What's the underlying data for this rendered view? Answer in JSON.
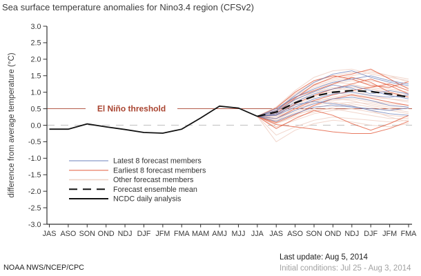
{
  "title": "Sea surface temperature anomalies for Nino3.4 region (CFSv2)",
  "footer": {
    "source": "NOAA NWS/NCEP/CPC",
    "last_update": "Last update: Aug 5, 2014",
    "initial_conditions": "Initial conditions: Jul 25 - Aug 3, 2014"
  },
  "colors": {
    "latest": "#6e82bb",
    "earliest": "#e2593a",
    "other": "#efd2c6",
    "mean": "#111111",
    "observed": "#111111",
    "threshold": "#a94430",
    "zero_line": "#c9c9c9",
    "axis": "#2f2f2f"
  },
  "chart_data": {
    "type": "line",
    "title": "Sea surface temperature anomalies for Nino3.4 region (CFSv2)",
    "xlabel": "",
    "ylabel": "difference from average temperature (°C)",
    "ylim": [
      -3.0,
      3.0
    ],
    "grid": false,
    "legend_position": "lower-left",
    "categories": [
      "JAS",
      "ASO",
      "SON",
      "OND",
      "NDJ",
      "DJF",
      "JFM",
      "FMA",
      "MAM",
      "AMJ",
      "MJJ",
      "JJA",
      "JAS",
      "ASO",
      "SON",
      "OND",
      "NDJ",
      "DJF",
      "JFM",
      "FMA"
    ],
    "ytick_values": [
      3.0,
      2.5,
      2.0,
      1.5,
      1.0,
      0.5,
      0.0,
      -0.5,
      -1.0,
      -1.5,
      -2.0,
      -2.5,
      -3.0
    ],
    "ytick_labels": [
      "3.0",
      "2.5",
      "2.0",
      "1.5",
      "1.0",
      "0.5",
      "0.0",
      "-0.5",
      "-1.0",
      "-1.5",
      "-2.0",
      "-2.5",
      "-3.0"
    ],
    "threshold": {
      "label": "El Niño threshold",
      "value": 0.5
    },
    "zero_line_value": 0.0,
    "series": [
      {
        "name": "NCDC daily analysis",
        "role": "observed",
        "start_index": 0,
        "values": [
          -0.12,
          -0.12,
          0.04,
          -0.05,
          -0.13,
          -0.22,
          -0.24,
          -0.12,
          0.22,
          0.58,
          0.52,
          0.27
        ]
      },
      {
        "name": "Forecast ensemble mean",
        "role": "mean",
        "start_index": 11,
        "values": [
          0.27,
          0.4,
          0.68,
          0.88,
          1.0,
          1.05,
          1.02,
          0.95,
          0.85
        ]
      }
    ],
    "members": {
      "latest": {
        "label": "Latest 8 forecast members",
        "start_index": 11,
        "lines": [
          [
            0.27,
            0.45,
            0.9,
            1.3,
            1.55,
            1.65,
            1.45,
            1.3,
            1.2
          ],
          [
            0.27,
            0.5,
            0.85,
            1.1,
            1.3,
            1.4,
            1.5,
            1.35,
            1.25
          ],
          [
            0.27,
            0.35,
            0.7,
            0.95,
            1.1,
            1.2,
            1.05,
            0.9,
            0.8
          ],
          [
            0.27,
            0.3,
            0.55,
            0.8,
            0.95,
            1.0,
            0.9,
            0.85,
            0.92
          ],
          [
            0.27,
            0.2,
            0.45,
            0.65,
            0.8,
            0.85,
            0.75,
            0.6,
            0.55
          ],
          [
            0.27,
            0.12,
            0.35,
            0.55,
            0.6,
            0.55,
            0.5,
            0.45,
            0.52
          ],
          [
            0.27,
            0.32,
            0.62,
            0.72,
            0.65,
            0.58,
            0.45,
            0.35,
            0.3
          ],
          [
            0.27,
            0.42,
            0.78,
            1.02,
            1.22,
            1.12,
            0.95,
            1.05,
            0.95
          ]
        ]
      },
      "earliest": {
        "label": "Earliest 8 forecast members",
        "start_index": 11,
        "lines": [
          [
            0.27,
            0.02,
            -0.05,
            -0.12,
            -0.2,
            -0.25,
            -0.25,
            -0.1,
            0.12
          ],
          [
            0.27,
            0.08,
            0.32,
            0.6,
            0.8,
            0.92,
            0.82,
            0.7,
            0.6
          ],
          [
            0.27,
            0.35,
            0.82,
            1.22,
            1.45,
            1.55,
            1.7,
            1.4,
            1.1
          ],
          [
            0.27,
            0.52,
            1.0,
            1.35,
            1.5,
            1.4,
            1.2,
            1.15,
            1.32
          ],
          [
            0.27,
            0.45,
            0.85,
            1.05,
            1.25,
            1.45,
            1.3,
            1.0,
            0.85
          ],
          [
            0.27,
            0.2,
            0.5,
            0.75,
            0.92,
            1.05,
            1.15,
            1.25,
            1.05
          ],
          [
            0.27,
            -0.1,
            0.2,
            0.45,
            0.3,
            0.05,
            -0.15,
            0.05,
            0.3
          ],
          [
            0.27,
            0.3,
            0.65,
            0.9,
            1.1,
            1.25,
            1.4,
            1.2,
            0.95
          ]
        ]
      },
      "other": {
        "label": "Other forecast members",
        "start_index": 11,
        "lines": [
          [
            0.27,
            0.55,
            1.05,
            1.45,
            1.65,
            1.7,
            1.55,
            1.45,
            1.35
          ],
          [
            0.27,
            0.45,
            0.95,
            1.25,
            1.4,
            1.5,
            1.6,
            1.5,
            1.4
          ],
          [
            0.27,
            0.35,
            0.75,
            1.05,
            1.25,
            1.35,
            1.25,
            1.1,
            1.0
          ],
          [
            0.27,
            0.25,
            0.6,
            0.85,
            1.05,
            1.15,
            1.1,
            1.0,
            0.9
          ],
          [
            0.27,
            0.15,
            0.45,
            0.7,
            0.85,
            0.95,
            0.85,
            0.8,
            0.75
          ],
          [
            0.27,
            0.05,
            0.3,
            0.5,
            0.65,
            0.7,
            0.65,
            0.55,
            0.5
          ],
          [
            0.27,
            -0.05,
            0.15,
            0.35,
            0.45,
            0.5,
            0.4,
            0.3,
            0.25
          ],
          [
            0.27,
            -0.3,
            -0.05,
            0.15,
            0.25,
            0.2,
            0.15,
            0.1,
            0.15
          ],
          [
            0.27,
            -0.5,
            -0.15,
            0.05,
            0.15,
            0.1,
            0.0,
            -0.05,
            0.05
          ],
          [
            0.27,
            0.1,
            0.4,
            0.6,
            0.7,
            0.6,
            0.45,
            0.25,
            0.1
          ],
          [
            0.27,
            0.2,
            0.55,
            0.75,
            0.8,
            0.75,
            0.6,
            0.5,
            0.4
          ],
          [
            0.27,
            0.3,
            0.7,
            1.0,
            1.15,
            1.05,
            0.9,
            0.8,
            0.7
          ],
          [
            0.27,
            0.4,
            0.85,
            1.15,
            1.3,
            1.25,
            1.1,
            0.95,
            0.85
          ],
          [
            0.27,
            0.5,
            0.9,
            1.2,
            1.35,
            1.45,
            1.35,
            1.25,
            1.15
          ],
          [
            0.27,
            0.35,
            0.65,
            0.9,
            1.0,
            0.9,
            0.75,
            0.65,
            0.6
          ],
          [
            0.27,
            0.25,
            0.5,
            0.65,
            0.75,
            0.8,
            0.7,
            0.6,
            0.55
          ],
          [
            0.27,
            0.15,
            0.35,
            0.45,
            0.5,
            0.4,
            0.3,
            0.2,
            0.2
          ],
          [
            0.27,
            0.05,
            0.25,
            0.4,
            0.55,
            0.65,
            0.55,
            0.45,
            0.35
          ],
          [
            0.27,
            0.45,
            0.8,
            1.0,
            1.1,
            1.2,
            1.15,
            1.05,
            0.95
          ],
          [
            0.27,
            0.55,
            0.95,
            1.3,
            1.5,
            1.6,
            1.65,
            1.5,
            1.3
          ]
        ]
      }
    },
    "legend": [
      {
        "key": "latest",
        "label": "Latest 8 forecast members"
      },
      {
        "key": "earliest",
        "label": "Earliest 8 forecast members"
      },
      {
        "key": "other",
        "label": "Other forecast members"
      },
      {
        "key": "mean",
        "label": "Forecast ensemble mean"
      },
      {
        "key": "observed",
        "label": "NCDC daily analysis"
      }
    ]
  }
}
